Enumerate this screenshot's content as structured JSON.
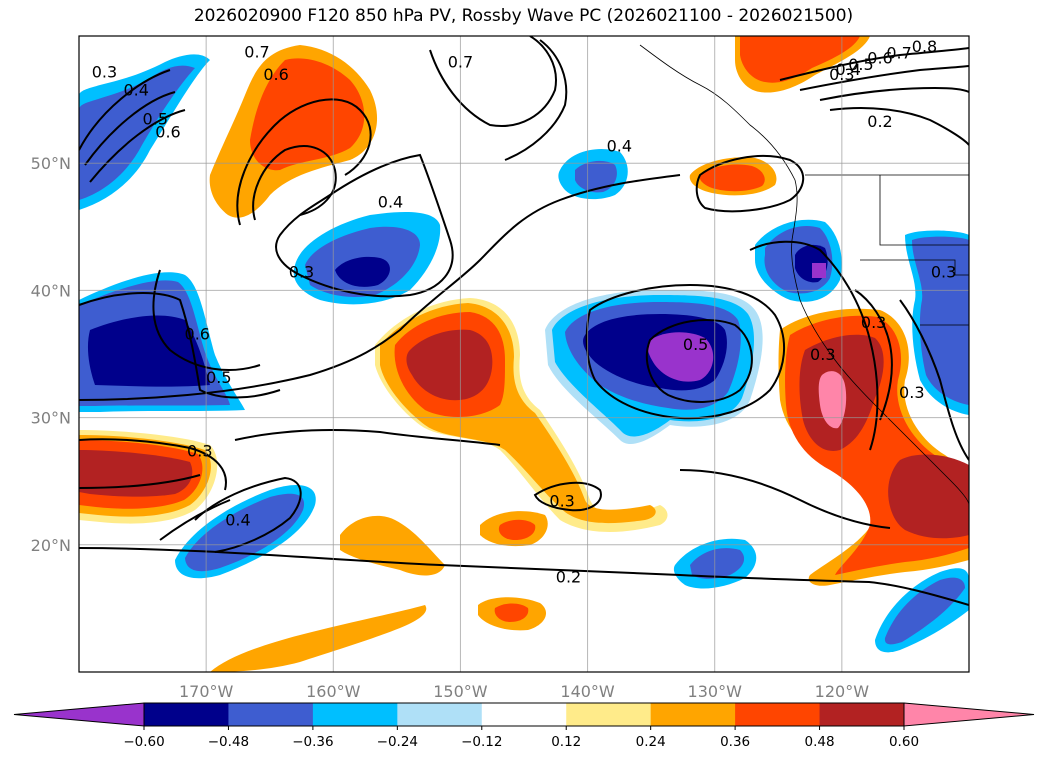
{
  "title": "2026020900 F120 850 hPa PV, Rossby Wave PC (2026021100 - 2026021500)",
  "map": {
    "lon_range": [
      -180,
      -110
    ],
    "lat_range": [
      10,
      60
    ],
    "lon_ticks": [
      {
        "value": -170,
        "label": "170°W"
      },
      {
        "value": -160,
        "label": "160°W"
      },
      {
        "value": -150,
        "label": "150°W"
      },
      {
        "value": -140,
        "label": "140°W"
      },
      {
        "value": -130,
        "label": "130°W"
      },
      {
        "value": -120,
        "label": "120°W"
      }
    ],
    "lat_ticks": [
      {
        "value": 20,
        "label": "20°N"
      },
      {
        "value": 30,
        "label": "30°N"
      },
      {
        "value": 40,
        "label": "40°N"
      },
      {
        "value": 50,
        "label": "50°N"
      }
    ],
    "grid": true,
    "contour_labels": [
      {
        "text": "0.3",
        "lon": -178.0,
        "lat": 57.2
      },
      {
        "text": "0.4",
        "lon": -175.5,
        "lat": 55.8
      },
      {
        "text": "0.5",
        "lon": -174.0,
        "lat": 53.5
      },
      {
        "text": "0.6",
        "lon": -173.0,
        "lat": 52.5
      },
      {
        "text": "0.7",
        "lon": -166.0,
        "lat": 58.8
      },
      {
        "text": "0.6",
        "lon": -164.5,
        "lat": 57.0
      },
      {
        "text": "0.7",
        "lon": -150.0,
        "lat": 58.0
      },
      {
        "text": "0.4",
        "lon": -137.5,
        "lat": 51.4
      },
      {
        "text": "0.8",
        "lon": -113.5,
        "lat": 59.2
      },
      {
        "text": "0.7",
        "lon": -115.5,
        "lat": 58.7
      },
      {
        "text": "0.6",
        "lon": -117.0,
        "lat": 58.3
      },
      {
        "text": "0.5",
        "lon": -118.5,
        "lat": 57.8
      },
      {
        "text": "0.4",
        "lon": -119.5,
        "lat": 57.4
      },
      {
        "text": "0.3",
        "lon": -120.0,
        "lat": 57.0
      },
      {
        "text": "0.2",
        "lon": -117.0,
        "lat": 53.3
      },
      {
        "text": "0.4",
        "lon": -155.5,
        "lat": 47.0
      },
      {
        "text": "0.3",
        "lon": -162.5,
        "lat": 41.5
      },
      {
        "text": "0.6",
        "lon": -170.7,
        "lat": 36.6
      },
      {
        "text": "0.5",
        "lon": -169.0,
        "lat": 33.2
      },
      {
        "text": "0.5",
        "lon": -131.5,
        "lat": 35.8
      },
      {
        "text": "0.3",
        "lon": -112.0,
        "lat": 41.5
      },
      {
        "text": "0.3",
        "lon": -117.5,
        "lat": 37.5
      },
      {
        "text": "0.3",
        "lon": -121.5,
        "lat": 35.0
      },
      {
        "text": "0.3",
        "lon": -114.5,
        "lat": 32.0
      },
      {
        "text": "0.3",
        "lon": -170.5,
        "lat": 27.4
      },
      {
        "text": "0.4",
        "lon": -167.5,
        "lat": 22.0
      },
      {
        "text": "0.3",
        "lon": -142.0,
        "lat": 23.5
      },
      {
        "text": "0.2",
        "lon": -141.5,
        "lat": 17.5
      }
    ]
  },
  "colorbar": {
    "colors": [
      "#9933cc",
      "#00008b",
      "#3e5dd0",
      "#00bfff",
      "#afe0f7",
      "#ffffff",
      "#ffeb8a",
      "#ffa500",
      "#ff4500",
      "#b22222",
      "#ff85a9"
    ],
    "tick_labels": [
      "−0.60",
      "−0.48",
      "−0.36",
      "−0.24",
      "−0.12",
      "0.12",
      "0.24",
      "0.36",
      "0.48",
      "0.60"
    ],
    "extend": "both"
  }
}
